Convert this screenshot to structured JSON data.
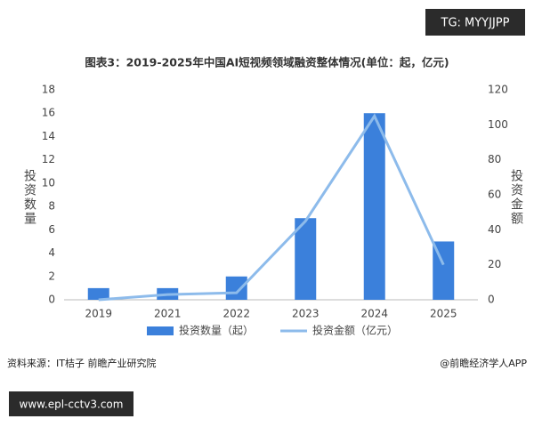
{
  "chart_data": {
    "type": "bar",
    "title": "图表3：2019-2025年中国AI短视频领域融资整体情况(单位：起，亿元)",
    "y_label": "投资数量",
    "y2_label": "投资金额",
    "categories": [
      "2019",
      "2021",
      "2022",
      "2023",
      "2024",
      "2025"
    ],
    "series": [
      {
        "name": "投资数量（起）",
        "type": "bar",
        "color": "#3b80db",
        "values": [
          1,
          1,
          2,
          7,
          16,
          5
        ]
      },
      {
        "name": "投资金额（亿元）",
        "type": "line",
        "axis": "y2",
        "color": "#8dbbeb",
        "values": [
          0,
          3,
          4,
          45,
          105,
          20
        ]
      }
    ],
    "ylim": [
      0,
      18
    ],
    "yticks": [
      0,
      2,
      4,
      6,
      8,
      10,
      12,
      14,
      16,
      18
    ],
    "y2lim": [
      0,
      120
    ],
    "y2ticks": [
      0,
      20,
      40,
      60,
      80,
      100,
      120
    ],
    "grid": false
  },
  "source": "资料来源：IT桔子 前瞻产业研究院",
  "credit": "@前瞻经济学人APP",
  "watermarks": [
    "TG: MYYJJPP",
    "www.epl-cctv3.com"
  ]
}
